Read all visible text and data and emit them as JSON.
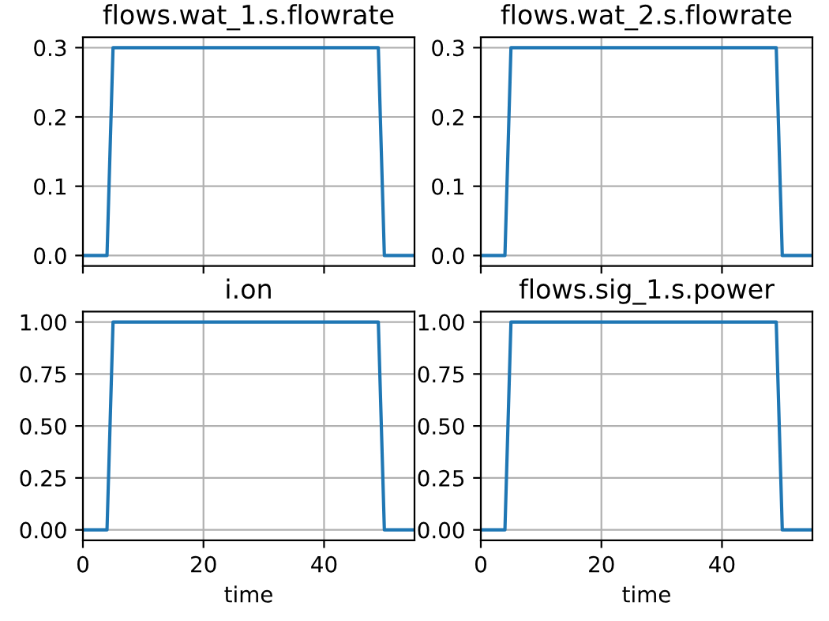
{
  "chart_data": [
    {
      "type": "line",
      "title": "flows.wat_1.s.flowrate",
      "x": [
        0,
        4,
        5,
        49,
        50,
        55
      ],
      "series": [
        {
          "color": "#1f77b4",
          "values": [
            0,
            0,
            0.3,
            0.3,
            0,
            0
          ]
        }
      ],
      "xlim": [
        0,
        55
      ],
      "xticks": [
        {
          "value": 0,
          "label": null
        },
        {
          "value": 20,
          "label": null
        },
        {
          "value": 40,
          "label": null
        }
      ],
      "ylim": [
        -0.015,
        0.315
      ],
      "yticks": [
        {
          "value": 0,
          "label": "0.0"
        },
        0.1,
        0.2,
        0.3
      ],
      "grid": true,
      "tick_labels": "y"
    },
    {
      "type": "line",
      "title": "flows.wat_2.s.flowrate",
      "x": [
        0,
        4,
        5,
        49,
        50,
        55
      ],
      "series": [
        {
          "color": "#1f77b4",
          "values": [
            0,
            0,
            0.3,
            0.3,
            0,
            0
          ]
        }
      ],
      "xlim": [
        0,
        55
      ],
      "xticks": [
        {
          "value": 0,
          "label": null
        },
        {
          "value": 20,
          "label": null
        },
        {
          "value": 40,
          "label": null
        }
      ],
      "ylim": [
        -0.015,
        0.315
      ],
      "yticks": [
        {
          "value": 0,
          "label": "0.0"
        },
        0.1,
        0.2,
        0.3
      ],
      "grid": true,
      "tick_labels": "y"
    },
    {
      "type": "line",
      "title": "i.on",
      "xlabel": "time",
      "x": [
        0,
        4,
        5,
        49,
        50,
        55
      ],
      "series": [
        {
          "color": "#1f77b4",
          "values": [
            0,
            0,
            1,
            1,
            0,
            0
          ]
        }
      ],
      "xlim": [
        0,
        55
      ],
      "xticks": [
        0,
        20,
        40
      ],
      "ylim": [
        -0.05,
        1.05
      ],
      "yticks": [
        {
          "value": 0,
          "label": "0.00"
        },
        0.25,
        {
          "value": 0.5,
          "label": "0.50"
        },
        0.75,
        {
          "value": 1,
          "label": "1.00"
        }
      ],
      "grid": true
    },
    {
      "type": "line",
      "title": "flows.sig_1.s.power",
      "xlabel": "time",
      "x": [
        0,
        4,
        5,
        49,
        50,
        55
      ],
      "series": [
        {
          "color": "#1f77b4",
          "values": [
            0,
            0,
            1,
            1,
            0,
            0
          ]
        }
      ],
      "xlim": [
        0,
        55
      ],
      "xticks": [
        0,
        20,
        40
      ],
      "ylim": [
        -0.05,
        1.05
      ],
      "yticks": [
        {
          "value": 0,
          "label": "0.00"
        },
        0.25,
        {
          "value": 0.5,
          "label": "0.50"
        },
        0.75,
        {
          "value": 1,
          "label": "1.00"
        }
      ],
      "grid": true
    }
  ]
}
